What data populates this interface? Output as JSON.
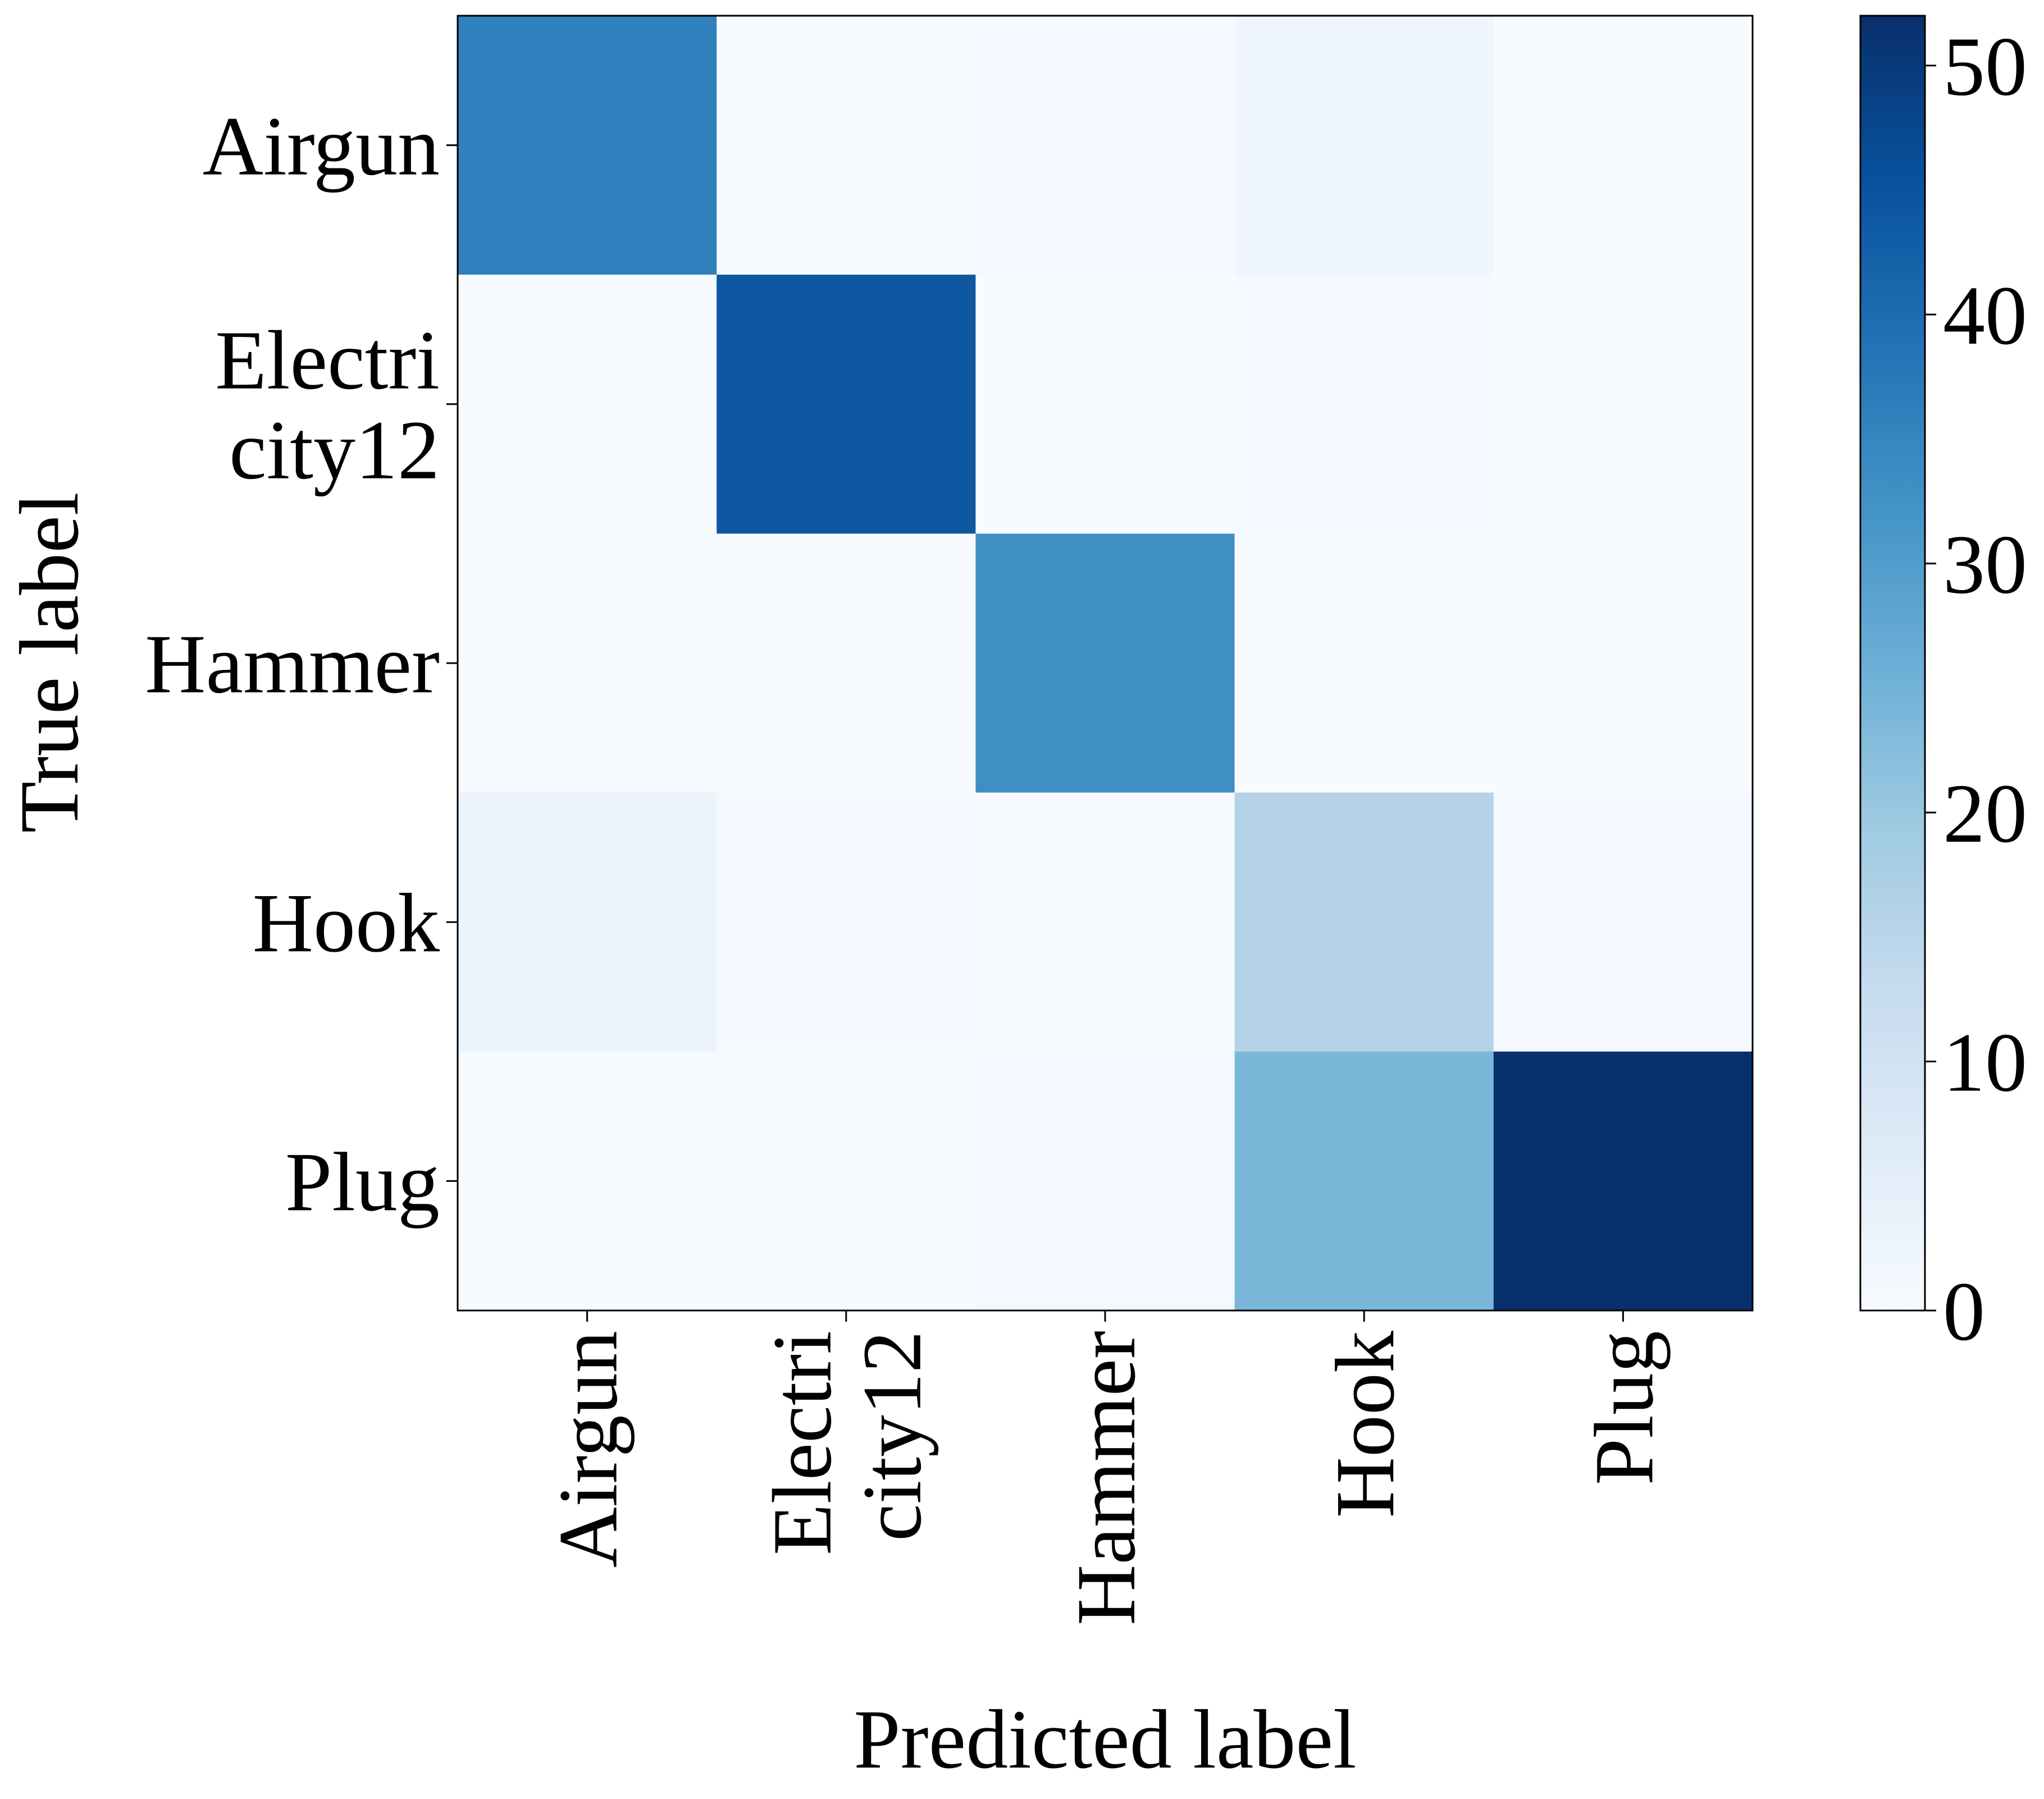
{
  "chart_data": {
    "type": "heatmap",
    "title": "",
    "xlabel": "Predicted label",
    "ylabel": "True label",
    "x_categories": [
      [
        "Airgun"
      ],
      [
        "Electri",
        "city12"
      ],
      [
        "Hammer"
      ],
      [
        "Hook"
      ],
      [
        "Plug"
      ]
    ],
    "y_categories": [
      [
        "Airgun"
      ],
      [
        "Electri",
        "city12"
      ],
      [
        "Hammer"
      ],
      [
        "Hook"
      ],
      [
        "Plug"
      ]
    ],
    "matrix": [
      [
        36,
        0,
        1,
        2,
        0
      ],
      [
        0,
        44,
        0,
        1,
        0
      ],
      [
        0,
        0,
        33,
        0,
        0
      ],
      [
        3,
        1,
        0,
        16,
        1
      ],
      [
        0,
        0,
        1,
        24,
        52
      ]
    ],
    "colorbar": {
      "min": 0,
      "max": 52,
      "ticks": [
        0,
        10,
        20,
        30,
        40,
        50
      ],
      "colormap": "Blues"
    },
    "grid": false
  }
}
